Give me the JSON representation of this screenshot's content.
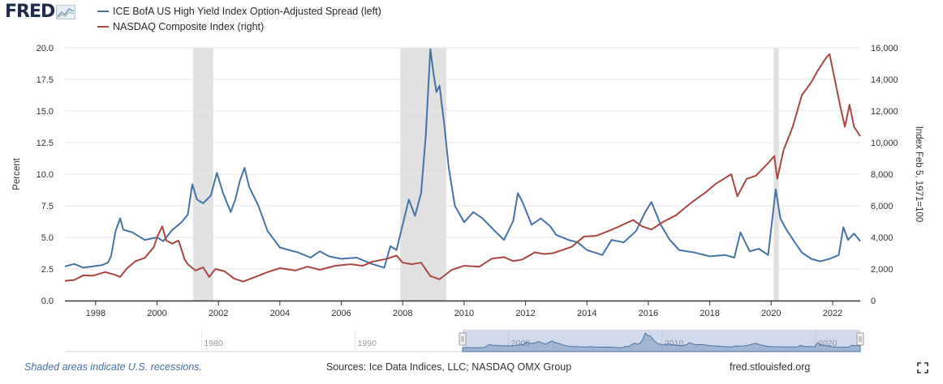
{
  "header": {
    "logo_text": "FRED",
    "legend": [
      {
        "label": "ICE BofA US High Yield Index Option-Adjusted Spread (left)",
        "color": "#4572a7"
      },
      {
        "label": "NASDAQ Composite Index (right)",
        "color": "#aa4643"
      }
    ]
  },
  "footer": {
    "recession_note": "Shaded areas indicate U.S. recessions.",
    "sources": "Sources: Ice Data Indices, LLC; NASDAQ OMX Group",
    "site": "fred.stlouisfed.org"
  },
  "colors": {
    "spread": "#4572a7",
    "nasdaq": "#aa4643",
    "recession": "#e1e1e1",
    "navigator_fill": "#bfcde3"
  },
  "chart_data": {
    "type": "line",
    "x_range": [
      1997.0,
      2022.9
    ],
    "x_ticks": [
      "1998",
      "2000",
      "2002",
      "2004",
      "2006",
      "2008",
      "2010",
      "2012",
      "2014",
      "2016",
      "2018",
      "2020",
      "2022"
    ],
    "ylabel_left": "Percent",
    "ylim_left": [
      0,
      20
    ],
    "y_ticks_left": [
      "0.0",
      "2.5",
      "5.0",
      "7.5",
      "10.0",
      "12.5",
      "15.0",
      "17.5",
      "20.0"
    ],
    "ylabel_right": "Index Feb 5, 1971=100",
    "ylim_right": [
      0,
      16000
    ],
    "y_ticks_right": [
      "0",
      "2,000",
      "4,000",
      "6,000",
      "8,000",
      "10,000",
      "12,000",
      "14,000",
      "16,000"
    ],
    "recessions": [
      [
        2001.17,
        2001.83
      ],
      [
        2007.92,
        2009.42
      ],
      [
        2020.08,
        2020.25
      ]
    ],
    "series": [
      {
        "name": "ICE BofA US High Yield Index Option-Adjusted Spread (left)",
        "axis": "left",
        "points": [
          [
            1997.0,
            2.7
          ],
          [
            1997.3,
            2.9
          ],
          [
            1997.6,
            2.6
          ],
          [
            1997.9,
            2.7
          ],
          [
            1998.2,
            2.8
          ],
          [
            1998.4,
            3.0
          ],
          [
            1998.5,
            3.5
          ],
          [
            1998.65,
            5.5
          ],
          [
            1998.8,
            6.5
          ],
          [
            1998.9,
            5.6
          ],
          [
            1999.2,
            5.4
          ],
          [
            1999.6,
            4.8
          ],
          [
            2000.0,
            5.0
          ],
          [
            2000.2,
            4.7
          ],
          [
            2000.5,
            5.6
          ],
          [
            2000.8,
            6.2
          ],
          [
            2001.0,
            6.8
          ],
          [
            2001.15,
            9.2
          ],
          [
            2001.3,
            8.0
          ],
          [
            2001.5,
            7.7
          ],
          [
            2001.75,
            8.3
          ],
          [
            2001.95,
            10.1
          ],
          [
            2002.15,
            8.5
          ],
          [
            2002.4,
            7.0
          ],
          [
            2002.55,
            8.0
          ],
          [
            2002.7,
            9.5
          ],
          [
            2002.85,
            10.5
          ],
          [
            2003.0,
            9.0
          ],
          [
            2003.3,
            7.5
          ],
          [
            2003.6,
            5.5
          ],
          [
            2004.0,
            4.2
          ],
          [
            2004.3,
            4.0
          ],
          [
            2004.6,
            3.8
          ],
          [
            2005.0,
            3.4
          ],
          [
            2005.3,
            3.9
          ],
          [
            2005.6,
            3.5
          ],
          [
            2006.0,
            3.3
          ],
          [
            2006.5,
            3.4
          ],
          [
            2007.0,
            2.9
          ],
          [
            2007.4,
            2.6
          ],
          [
            2007.6,
            4.3
          ],
          [
            2007.8,
            4.0
          ],
          [
            2008.0,
            6.0
          ],
          [
            2008.2,
            8.0
          ],
          [
            2008.4,
            6.7
          ],
          [
            2008.6,
            8.5
          ],
          [
            2008.75,
            13.0
          ],
          [
            2008.9,
            19.9
          ],
          [
            2009.0,
            18.0
          ],
          [
            2009.1,
            16.5
          ],
          [
            2009.2,
            17.0
          ],
          [
            2009.35,
            14.0
          ],
          [
            2009.5,
            10.5
          ],
          [
            2009.7,
            7.5
          ],
          [
            2010.0,
            6.2
          ],
          [
            2010.3,
            7.0
          ],
          [
            2010.6,
            6.5
          ],
          [
            2011.0,
            5.5
          ],
          [
            2011.3,
            4.8
          ],
          [
            2011.6,
            6.3
          ],
          [
            2011.75,
            8.5
          ],
          [
            2011.9,
            7.8
          ],
          [
            2012.2,
            6.0
          ],
          [
            2012.5,
            6.5
          ],
          [
            2012.8,
            5.9
          ],
          [
            2013.0,
            5.2
          ],
          [
            2013.4,
            4.8
          ],
          [
            2013.7,
            4.6
          ],
          [
            2014.0,
            4.0
          ],
          [
            2014.5,
            3.6
          ],
          [
            2014.8,
            4.8
          ],
          [
            2015.2,
            4.6
          ],
          [
            2015.6,
            5.5
          ],
          [
            2015.9,
            7.0
          ],
          [
            2016.1,
            7.8
          ],
          [
            2016.4,
            6.0
          ],
          [
            2016.7,
            4.8
          ],
          [
            2017.0,
            4.0
          ],
          [
            2017.5,
            3.8
          ],
          [
            2018.0,
            3.5
          ],
          [
            2018.5,
            3.6
          ],
          [
            2018.8,
            3.4
          ],
          [
            2019.0,
            5.4
          ],
          [
            2019.3,
            3.9
          ],
          [
            2019.6,
            4.1
          ],
          [
            2019.9,
            3.6
          ],
          [
            2020.15,
            8.8
          ],
          [
            2020.3,
            6.5
          ],
          [
            2020.5,
            5.6
          ],
          [
            2020.8,
            4.5
          ],
          [
            2021.0,
            3.8
          ],
          [
            2021.3,
            3.3
          ],
          [
            2021.6,
            3.1
          ],
          [
            2021.9,
            3.3
          ],
          [
            2022.2,
            3.6
          ],
          [
            2022.35,
            5.8
          ],
          [
            2022.5,
            4.8
          ],
          [
            2022.7,
            5.3
          ],
          [
            2022.9,
            4.7
          ]
        ]
      },
      {
        "name": "NASDAQ Composite Index (right)",
        "axis": "right",
        "points": [
          [
            1997.0,
            1250
          ],
          [
            1997.3,
            1300
          ],
          [
            1997.6,
            1600
          ],
          [
            1997.9,
            1570
          ],
          [
            1998.3,
            1800
          ],
          [
            1998.6,
            1650
          ],
          [
            1998.8,
            1500
          ],
          [
            1999.0,
            2000
          ],
          [
            1999.3,
            2500
          ],
          [
            1999.6,
            2700
          ],
          [
            1999.9,
            3400
          ],
          [
            2000.0,
            4000
          ],
          [
            2000.17,
            4700
          ],
          [
            2000.3,
            3800
          ],
          [
            2000.5,
            3600
          ],
          [
            2000.7,
            3800
          ],
          [
            2000.9,
            2600
          ],
          [
            2001.0,
            2300
          ],
          [
            2001.25,
            1900
          ],
          [
            2001.5,
            2100
          ],
          [
            2001.7,
            1500
          ],
          [
            2001.9,
            2000
          ],
          [
            2002.2,
            1850
          ],
          [
            2002.5,
            1400
          ],
          [
            2002.8,
            1200
          ],
          [
            2003.2,
            1500
          ],
          [
            2003.6,
            1800
          ],
          [
            2004.0,
            2050
          ],
          [
            2004.5,
            1900
          ],
          [
            2004.9,
            2150
          ],
          [
            2005.3,
            1950
          ],
          [
            2005.8,
            2200
          ],
          [
            2006.3,
            2300
          ],
          [
            2006.7,
            2200
          ],
          [
            2007.0,
            2450
          ],
          [
            2007.5,
            2650
          ],
          [
            2007.8,
            2850
          ],
          [
            2008.0,
            2400
          ],
          [
            2008.3,
            2300
          ],
          [
            2008.6,
            2400
          ],
          [
            2008.9,
            1550
          ],
          [
            2009.2,
            1350
          ],
          [
            2009.6,
            1950
          ],
          [
            2010.0,
            2200
          ],
          [
            2010.5,
            2150
          ],
          [
            2010.9,
            2650
          ],
          [
            2011.3,
            2750
          ],
          [
            2011.6,
            2500
          ],
          [
            2011.9,
            2600
          ],
          [
            2012.3,
            3050
          ],
          [
            2012.6,
            2950
          ],
          [
            2012.9,
            3000
          ],
          [
            2013.5,
            3400
          ],
          [
            2013.9,
            4050
          ],
          [
            2014.3,
            4100
          ],
          [
            2014.7,
            4400
          ],
          [
            2015.0,
            4650
          ],
          [
            2015.5,
            5100
          ],
          [
            2015.8,
            4700
          ],
          [
            2016.1,
            4500
          ],
          [
            2016.5,
            5000
          ],
          [
            2016.9,
            5400
          ],
          [
            2017.4,
            6200
          ],
          [
            2017.9,
            6900
          ],
          [
            2018.2,
            7400
          ],
          [
            2018.7,
            8000
          ],
          [
            2018.9,
            6600
          ],
          [
            2019.2,
            7700
          ],
          [
            2019.5,
            7900
          ],
          [
            2019.9,
            8700
          ],
          [
            2020.1,
            9150
          ],
          [
            2020.2,
            7700
          ],
          [
            2020.4,
            9500
          ],
          [
            2020.7,
            11000
          ],
          [
            2021.0,
            13000
          ],
          [
            2021.3,
            13800
          ],
          [
            2021.5,
            14500
          ],
          [
            2021.8,
            15400
          ],
          [
            2021.9,
            15600
          ],
          [
            2022.05,
            14200
          ],
          [
            2022.25,
            12300
          ],
          [
            2022.4,
            11000
          ],
          [
            2022.55,
            12400
          ],
          [
            2022.7,
            11000
          ],
          [
            2022.9,
            10400
          ]
        ]
      }
    ],
    "navigator": {
      "ticks": [
        "1980",
        "1990",
        "2000",
        "2010",
        "2020"
      ]
    }
  }
}
